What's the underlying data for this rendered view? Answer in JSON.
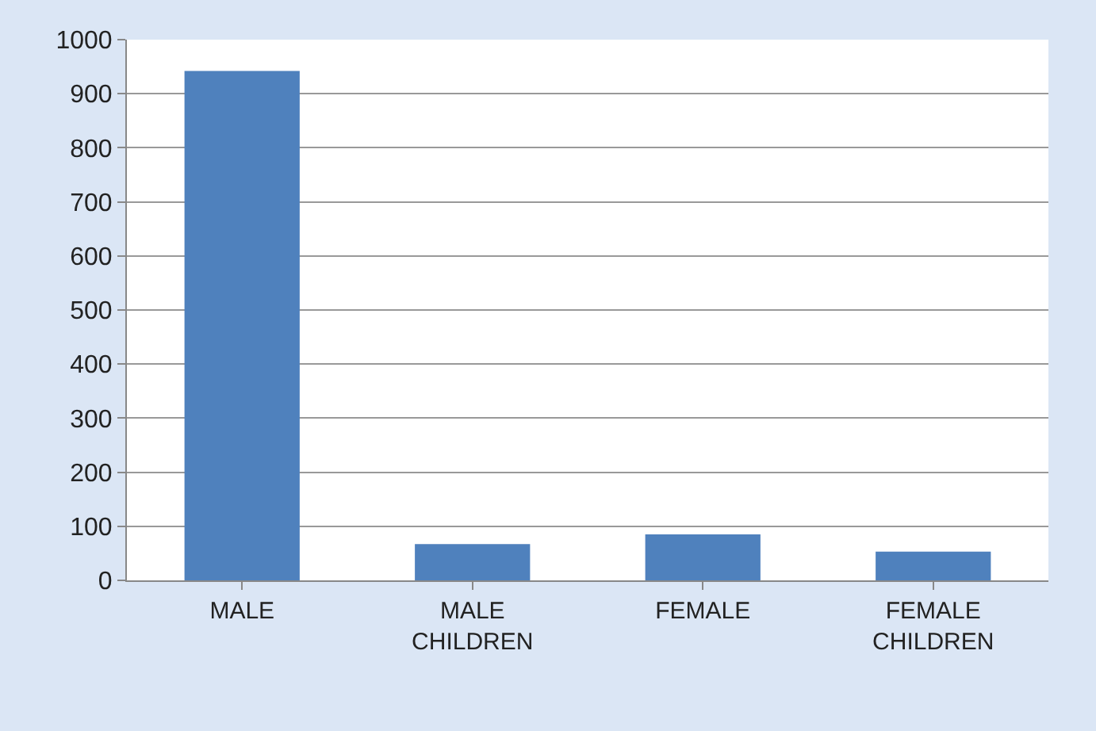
{
  "chart_data": {
    "type": "bar",
    "categories": [
      "MALE",
      "MALE CHILDREN",
      "FEMALE",
      "FEMALE CHILDREN"
    ],
    "values": [
      942,
      67,
      85,
      53
    ],
    "color": "#4f81bd",
    "ylim": [
      0,
      1000
    ],
    "yticks": [
      0,
      100,
      200,
      300,
      400,
      500,
      600,
      700,
      800,
      900,
      1000
    ],
    "grid": "y",
    "legend": false
  }
}
